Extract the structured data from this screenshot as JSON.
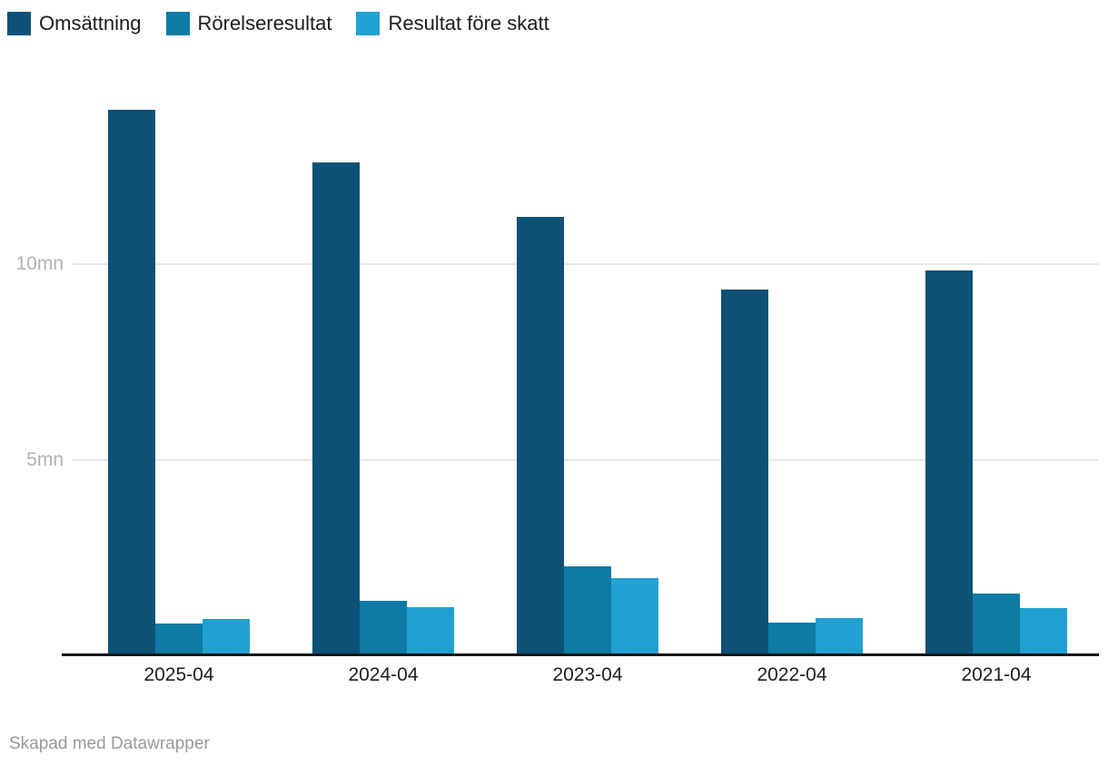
{
  "chart_data": {
    "type": "bar",
    "title": "",
    "xlabel": "",
    "ylabel": "",
    "unit": "mn",
    "grid": true,
    "legend_position": "top-left",
    "ylim": [
      0,
      14
    ],
    "yticks": [
      {
        "value": 5,
        "label": "5mn"
      },
      {
        "value": 10,
        "label": "10mn"
      }
    ],
    "categories": [
      "2025-04",
      "2024-04",
      "2023-04",
      "2022-04",
      "2021-04"
    ],
    "series": [
      {
        "name": "Omsättning",
        "color": "#0d5176",
        "values": [
          13.9,
          12.55,
          11.15,
          9.3,
          9.8
        ]
      },
      {
        "name": "Rörelseresultat",
        "color": "#0e7aa6",
        "values": [
          0.76,
          1.34,
          2.23,
          0.78,
          1.53
        ]
      },
      {
        "name": "Resultat före skatt",
        "color": "#21a1d1",
        "values": [
          0.88,
          1.18,
          1.92,
          0.91,
          1.16
        ]
      }
    ]
  },
  "footer": {
    "credit": "Skapad med Datawrapper"
  },
  "colors": {
    "axis": "#161616",
    "grid": "#e8e8e8",
    "tick_label": "#b3b3b3",
    "category_label": "#1d1d1d",
    "footer_text": "#9a9a9a"
  }
}
